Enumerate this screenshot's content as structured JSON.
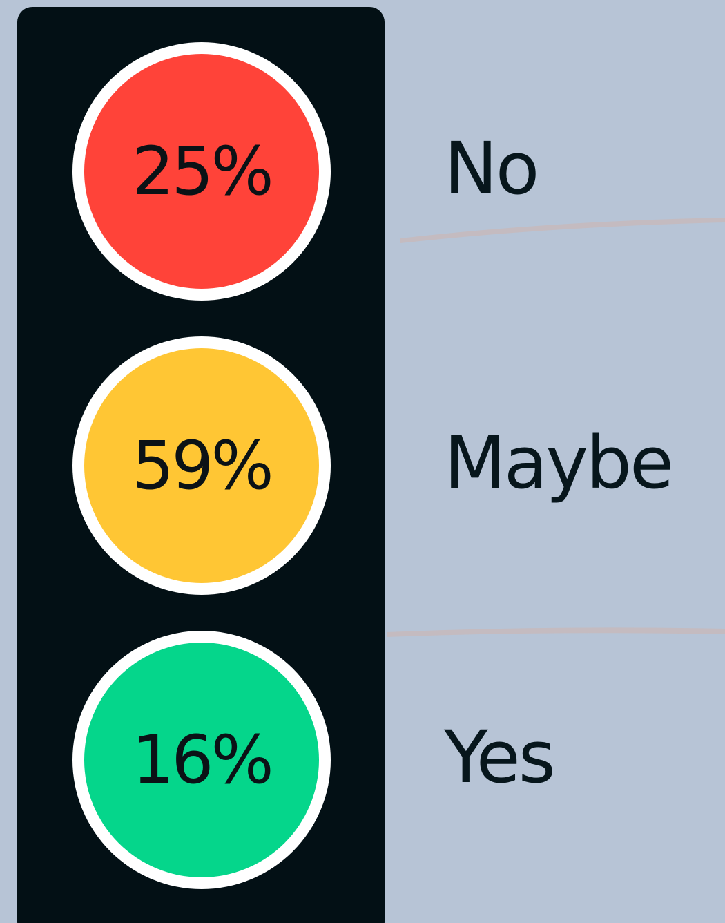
{
  "items": [
    {
      "percent": "25%",
      "label": "No",
      "color": "#ff4339"
    },
    {
      "percent": "59%",
      "label": "Maybe",
      "color": "#ffc634"
    },
    {
      "percent": "16%",
      "label": "Yes",
      "color": "#05d68b"
    }
  ]
}
